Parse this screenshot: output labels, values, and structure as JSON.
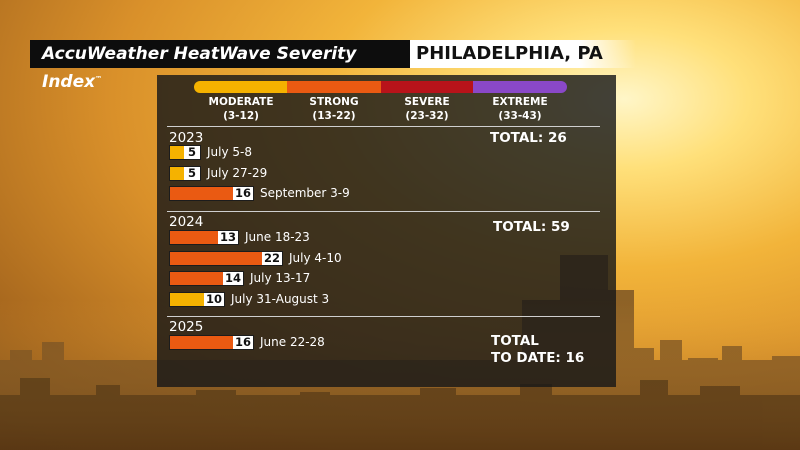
{
  "header": {
    "title": "AccuWeather HeatWave Severity Index",
    "trademark": "™",
    "city": "PHILADELPHIA, PA"
  },
  "colors": {
    "moderate": "#f5b200",
    "strong": "#ea5a12",
    "severe": "#b8131a",
    "extreme": "#8a48c8"
  },
  "scale": [
    {
      "name": "MODERATE",
      "range": "(3-12)",
      "color": "#f5b200"
    },
    {
      "name": "STRONG",
      "range": "(13-22)",
      "color": "#ea5a12"
    },
    {
      "name": "SEVERE",
      "range": "(23-32)",
      "color": "#b8131a"
    },
    {
      "name": "EXTREME",
      "range": "(33-43)",
      "color": "#8a48c8"
    }
  ],
  "chart_data": {
    "type": "bar",
    "title": "AccuWeather HeatWave Severity Index",
    "subtitle": "PHILADELPHIA, PA",
    "groups": [
      {
        "year": "2023",
        "total_label": "TOTAL: 26",
        "events": [
          {
            "value": 5,
            "label": "July 5-8",
            "category": "moderate"
          },
          {
            "value": 5,
            "label": "July 27-29",
            "category": "moderate"
          },
          {
            "value": 16,
            "label": "September 3-9",
            "category": "strong"
          }
        ]
      },
      {
        "year": "2024",
        "total_label": "TOTAL: 59",
        "events": [
          {
            "value": 13,
            "label": "June 18-23",
            "category": "strong"
          },
          {
            "value": 22,
            "label": "July 4-10",
            "category": "strong"
          },
          {
            "value": 14,
            "label": "July 13-17",
            "category": "strong"
          },
          {
            "value": 10,
            "label": "July 31-August 3",
            "category": "moderate"
          }
        ]
      },
      {
        "year": "2025",
        "total_label_line1": "TOTAL",
        "total_label_line2": "TO DATE: 16",
        "events": [
          {
            "value": 16,
            "label": "June 22-28",
            "category": "strong"
          }
        ]
      }
    ]
  }
}
